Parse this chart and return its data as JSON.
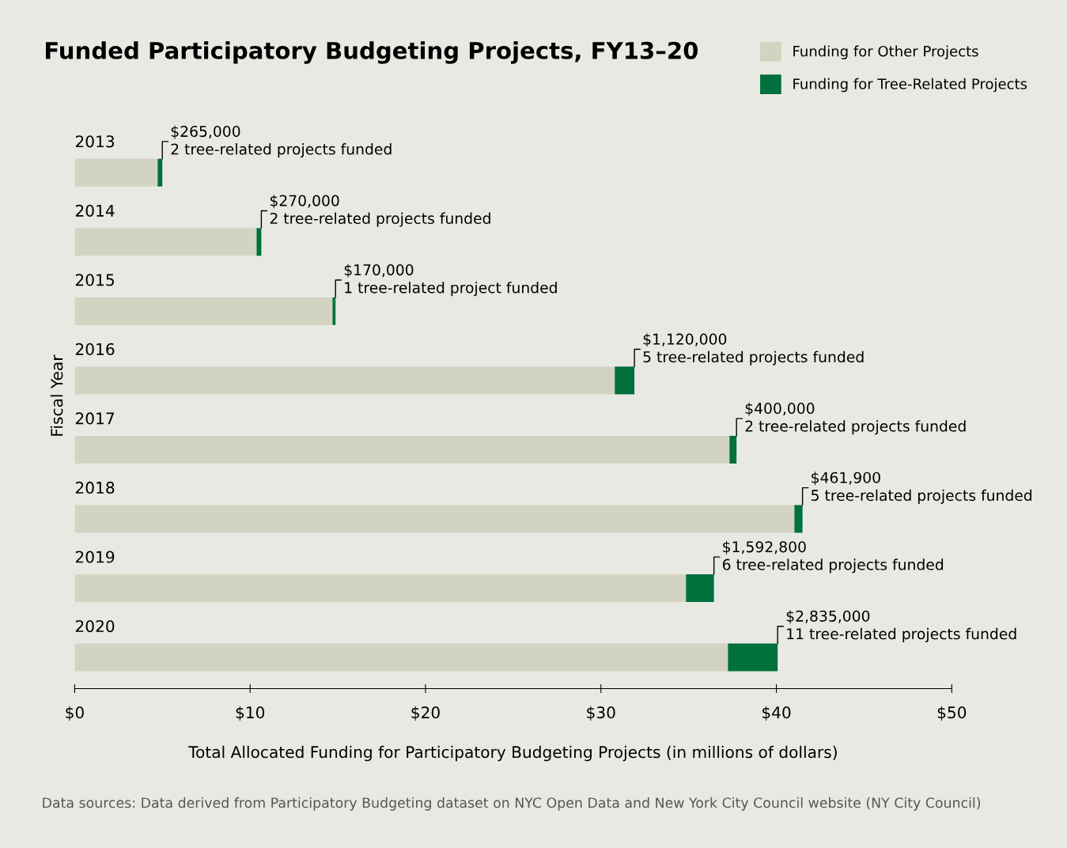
{
  "chart_data": {
    "type": "bar",
    "orientation": "horizontal",
    "stacked": true,
    "title": "Funded Participatory Budgeting Projects, FY13–20",
    "xlabel": "Total Allocated Funding for Participatory Budgeting Projects (in millions of dollars)",
    "ylabel": "Fiscal Year",
    "categories": [
      "2013",
      "2014",
      "2015",
      "2016",
      "2017",
      "2018",
      "2019",
      "2020"
    ],
    "series": [
      {
        "name": "Funding for Other Projects",
        "color": "#d3d3c1",
        "values": [
          4.73,
          10.37,
          14.7,
          30.79,
          37.33,
          41.03,
          34.85,
          37.24
        ]
      },
      {
        "name": "Funding for Tree-Related Projects",
        "color": "#00703c",
        "values": [
          0.265,
          0.27,
          0.17,
          1.12,
          0.4,
          0.4619,
          1.5928,
          2.835
        ]
      }
    ],
    "xlim": [
      0,
      50
    ],
    "xticks": [
      {
        "value": 0,
        "label": "$0"
      },
      {
        "value": 10,
        "label": "$10"
      },
      {
        "value": 20,
        "label": "$20"
      },
      {
        "value": 30,
        "label": "$30"
      },
      {
        "value": 40,
        "label": "$40"
      },
      {
        "value": 50,
        "label": "$50"
      }
    ],
    "grid": false,
    "legend": "top right",
    "annotations": [
      {
        "text": "$265,000\n2 tree-related projects funded",
        "x": 4.995,
        "y": "2013"
      },
      {
        "text": "$270,000\n2 tree-related projects funded",
        "x": 10.64,
        "y": "2014"
      },
      {
        "text": "$170,000\n1 tree-related project funded",
        "x": 14.87,
        "y": "2015"
      },
      {
        "text": "$1,120,000\n5 tree-related projects funded",
        "x": 31.91,
        "y": "2016"
      },
      {
        "text": "$400,000\n2 tree-related projects funded",
        "x": 37.73,
        "y": "2017"
      },
      {
        "text": "$461,900\n5 tree-related projects funded",
        "x": 41.4919,
        "y": "2018"
      },
      {
        "text": "$1,592,800\n6 tree-related projects funded",
        "x": 36.4428,
        "y": "2019"
      },
      {
        "text": "$2,835,000\n11 tree-related projects funded",
        "x": 40.075,
        "y": "2020"
      },
      "Data sources: Data derived from Participatory Budgeting dataset on NYC Open Data and New York City Council website (NY City Council)"
    ]
  }
}
